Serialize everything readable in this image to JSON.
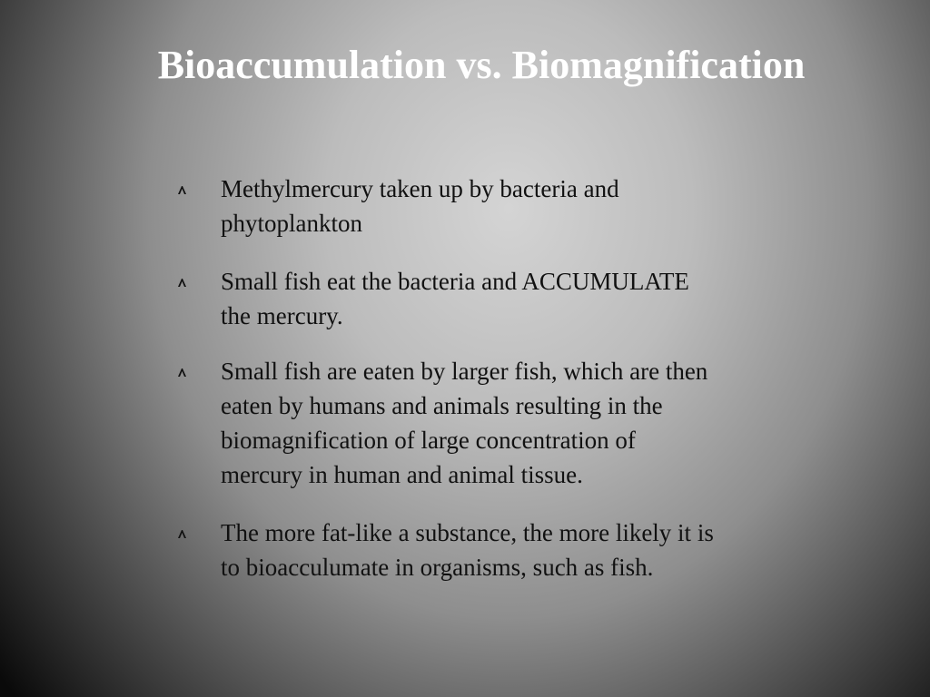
{
  "title": "Bioaccumulation vs. Biomagnification",
  "bullets": [
    [
      "Methylmercury taken up by bacteria and",
      "phytoplankton"
    ],
    [
      "Small fish eat the bacteria and ACCUMULATE",
      "the mercury."
    ],
    [
      "Small fish are eaten by larger fish, which are then",
      "eaten by humans and animals resulting in the",
      "biomagnification of large concentration of",
      "mercury in human and animal tissue."
    ],
    [
      "The more fat-like a substance, the more likely it is",
      "to bioacculumate in organisms, such as fish."
    ]
  ]
}
